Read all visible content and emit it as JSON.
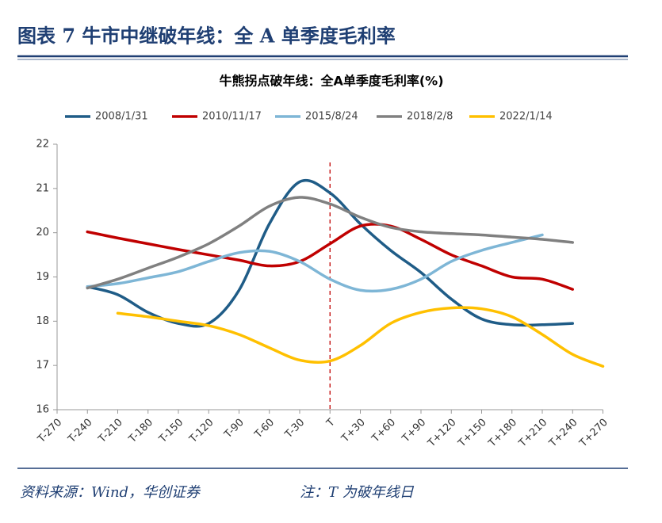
{
  "header": {
    "title": "图表 7  牛市中继破年线：全 A 单季度毛利率"
  },
  "chart_data": {
    "type": "line",
    "title": "牛熊拐点破年线：全A单季度毛利率(%)",
    "categories": [
      "T-270",
      "T-240",
      "T-210",
      "T-180",
      "T-150",
      "T-120",
      "T-90",
      "T-60",
      "T-30",
      "T",
      "T+30",
      "T+60",
      "T+90",
      "T+120",
      "T+150",
      "T+180",
      "T+210",
      "T+240",
      "T+270"
    ],
    "series": [
      {
        "name": "2008/1/31",
        "color": "#1f5c87",
        "values": [
          null,
          18.78,
          18.6,
          18.2,
          17.95,
          17.95,
          18.7,
          20.2,
          21.15,
          20.9,
          20.2,
          19.6,
          19.1,
          18.5,
          18.05,
          17.92,
          17.92,
          17.95,
          null
        ]
      },
      {
        "name": "2010/11/17",
        "color": "#c00000",
        "values": [
          null,
          20.02,
          19.88,
          19.75,
          19.62,
          19.5,
          19.38,
          19.25,
          19.35,
          19.75,
          20.15,
          20.15,
          19.85,
          19.5,
          19.25,
          19.0,
          18.95,
          18.72,
          null
        ]
      },
      {
        "name": "2015/8/24",
        "color": "#7eb6d6",
        "values": [
          null,
          18.78,
          18.85,
          18.98,
          19.12,
          19.35,
          19.55,
          19.58,
          19.35,
          18.95,
          18.7,
          18.72,
          18.95,
          19.35,
          19.6,
          19.78,
          19.95,
          null,
          null
        ]
      },
      {
        "name": "2018/2/8",
        "color": "#808080",
        "values": [
          null,
          18.75,
          18.95,
          19.2,
          19.45,
          19.75,
          20.15,
          20.6,
          20.8,
          20.65,
          20.35,
          20.12,
          20.02,
          19.98,
          19.95,
          19.9,
          19.85,
          19.78,
          null
        ]
      },
      {
        "name": "2022/1/14",
        "color": "#ffc000",
        "values": [
          null,
          null,
          18.18,
          18.1,
          18.0,
          17.9,
          17.7,
          17.4,
          17.12,
          17.1,
          17.45,
          17.95,
          18.2,
          18.3,
          18.28,
          18.1,
          17.7,
          17.25,
          16.98
        ]
      }
    ],
    "ylim": [
      16,
      22
    ],
    "yticks": [
      16,
      17,
      18,
      19,
      20,
      21,
      22
    ],
    "legend": "top",
    "marker_category": 9
  },
  "footer": {
    "source": "资料来源：Wind，华创证券",
    "note": "注：T 为破年线日"
  }
}
